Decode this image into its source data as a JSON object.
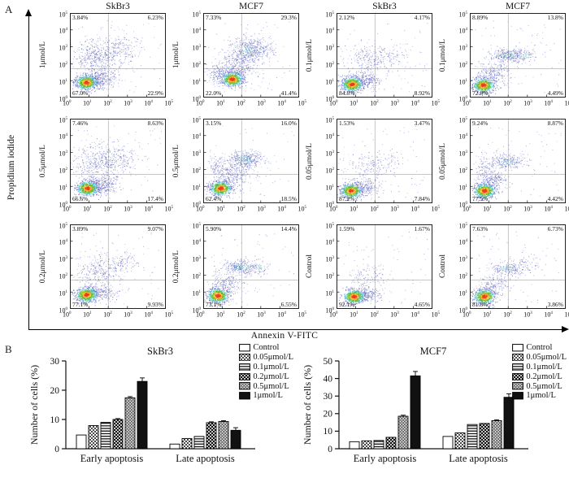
{
  "figure": {
    "panel_a_label": "A",
    "panel_b_label": "B",
    "y_axis_label": "Propidium iodide",
    "x_axis_label": "Annexin V-FITC",
    "column_titles": [
      "SkBr3",
      "MCF7",
      "SkBr3",
      "MCF7"
    ],
    "y_ticks": [
      "10^5",
      "10^4",
      "10^3",
      "10^2",
      "10^1",
      "10^0"
    ],
    "x_ticks": [
      "10^0",
      "10^1",
      "10^2",
      "10^3",
      "10^4",
      "10^5"
    ]
  },
  "chart_data": {
    "flow_cytometry": {
      "type": "scatter",
      "x_axis": "Annexin V-FITC",
      "y_axis": "Propidium iodide",
      "axis_log10_range": [
        0,
        5
      ],
      "plots": [
        {
          "cell_line": "SkBr3",
          "treatment": "1μmol/L",
          "quadrants": {
            "ul": "3.84%",
            "ur": "6.23%",
            "ll": "67.0%",
            "lr": "22.9%"
          },
          "render": {
            "hot": [
              0.17,
              0.82
            ],
            "clusters": [
              [
                0.31,
                0.78,
                0.09,
                0.05,
                320,
                0
              ],
              [
                0.3,
                0.52,
                0.13,
                0.11,
                500,
                0
              ],
              [
                0.55,
                0.42,
                0.1,
                0.08,
                140,
                0
              ]
            ]
          }
        },
        {
          "cell_line": "MCF7",
          "treatment": "1μmol/L",
          "quadrants": {
            "ul": "7.33%",
            "ur": "29.3%",
            "ll": "22.0%",
            "lr": "41.4%"
          },
          "render": {
            "hot": [
              0.3,
              0.78
            ],
            "clusters": [
              [
                0.46,
                0.44,
                0.1,
                0.07,
                420,
                1
              ],
              [
                0.34,
                0.62,
                0.11,
                0.09,
                330,
                0
              ],
              [
                0.15,
                0.72,
                0.06,
                0.06,
                140,
                0
              ],
              [
                0.62,
                0.4,
                0.07,
                0.05,
                90,
                1
              ]
            ]
          }
        },
        {
          "cell_line": "SkBr3",
          "treatment": "0.1μmol/L",
          "quadrants": {
            "ul": "2.12%",
            "ur": "4.17%",
            "ll": "84.8%",
            "lr": "8.92%"
          },
          "render": {
            "hot": [
              0.16,
              0.84
            ],
            "clusters": [
              [
                0.3,
                0.8,
                0.08,
                0.05,
                240,
                0
              ],
              [
                0.33,
                0.56,
                0.12,
                0.1,
                260,
                0
              ],
              [
                0.58,
                0.5,
                0.1,
                0.07,
                70,
                0
              ]
            ]
          }
        },
        {
          "cell_line": "MCF7",
          "treatment": "0.1μmol/L",
          "quadrants": {
            "ul": "8.89%",
            "ur": "13.8%",
            "ll": "72.8%",
            "lr": "4.49%"
          },
          "render": {
            "hot": [
              0.14,
              0.85
            ],
            "clusters": [
              [
                0.4,
                0.5,
                0.1,
                0.04,
                320,
                1
              ],
              [
                0.24,
                0.7,
                0.08,
                0.07,
                240,
                0
              ],
              [
                0.56,
                0.5,
                0.08,
                0.04,
                90,
                1
              ]
            ]
          }
        },
        {
          "cell_line": "SkBr3",
          "treatment": "0.5μmol/L",
          "quadrants": {
            "ul": "7.46%",
            "ur": "8.63%",
            "ll": "66.6%",
            "lr": "17.4%"
          },
          "render": {
            "hot": [
              0.18,
              0.82
            ],
            "clusters": [
              [
                0.33,
                0.78,
                0.09,
                0.05,
                300,
                0
              ],
              [
                0.3,
                0.52,
                0.13,
                0.11,
                420,
                0
              ],
              [
                0.55,
                0.46,
                0.1,
                0.08,
                130,
                0
              ]
            ]
          }
        },
        {
          "cell_line": "MCF7",
          "treatment": "0.5μmol/L",
          "quadrants": {
            "ul": "3.15%",
            "ur": "16.0%",
            "ll": "62.4%",
            "lr": "18.5%"
          },
          "render": {
            "hot": [
              0.18,
              0.82
            ],
            "clusters": [
              [
                0.43,
                0.48,
                0.09,
                0.05,
                380,
                1
              ],
              [
                0.3,
                0.66,
                0.1,
                0.08,
                300,
                0
              ],
              [
                0.14,
                0.56,
                0.05,
                0.08,
                90,
                0
              ]
            ]
          }
        },
        {
          "cell_line": "SkBr3",
          "treatment": "0.05μmol/L",
          "quadrants": {
            "ul": "1.53%",
            "ur": "3.47%",
            "ll": "87.2%",
            "lr": "7.84%"
          },
          "render": {
            "hot": [
              0.15,
              0.85
            ],
            "clusters": [
              [
                0.29,
                0.82,
                0.08,
                0.05,
                200,
                0
              ],
              [
                0.34,
                0.6,
                0.12,
                0.1,
                170,
                0
              ],
              [
                0.55,
                0.5,
                0.1,
                0.08,
                50,
                0
              ]
            ]
          }
        },
        {
          "cell_line": "MCF7",
          "treatment": "0.05μmol/L",
          "quadrants": {
            "ul": "9.24%",
            "ur": "8.87%",
            "ll": "77.5%",
            "lr": "4.42%"
          },
          "render": {
            "hot": [
              0.15,
              0.85
            ],
            "clusters": [
              [
                0.38,
                0.5,
                0.1,
                0.05,
                260,
                1
              ],
              [
                0.24,
                0.71,
                0.08,
                0.06,
                220,
                0
              ],
              [
                0.14,
                0.56,
                0.05,
                0.07,
                80,
                0
              ]
            ]
          }
        },
        {
          "cell_line": "SkBr3",
          "treatment": "0.2μmol/L",
          "quadrants": {
            "ul": "3.89%",
            "ur": "9.07%",
            "ll": "77.1%",
            "lr": "9.93%"
          },
          "render": {
            "hot": [
              0.17,
              0.83
            ],
            "clusters": [
              [
                0.31,
                0.8,
                0.09,
                0.05,
                240,
                0
              ],
              [
                0.32,
                0.55,
                0.12,
                0.1,
                300,
                0
              ],
              [
                0.57,
                0.44,
                0.08,
                0.06,
                90,
                0
              ]
            ]
          }
        },
        {
          "cell_line": "MCF7",
          "treatment": "0.2μmol/L",
          "quadrants": {
            "ul": "5.90%",
            "ur": "14.4%",
            "ll": "73.1%",
            "lr": "6.55%"
          },
          "render": {
            "hot": [
              0.15,
              0.84
            ],
            "clusters": [
              [
                0.4,
                0.5,
                0.09,
                0.04,
                300,
                1
              ],
              [
                0.24,
                0.7,
                0.08,
                0.07,
                210,
                0
              ],
              [
                0.55,
                0.52,
                0.07,
                0.05,
                70,
                1
              ]
            ]
          }
        },
        {
          "cell_line": "SkBr3",
          "treatment": "Control",
          "quadrants": {
            "ul": "1.59%",
            "ur": "1.67%",
            "ll": "92.1%",
            "lr": "4.65%"
          },
          "render": {
            "hot": [
              0.18,
              0.85
            ],
            "clusters": [
              [
                0.31,
                0.83,
                0.08,
                0.04,
                200,
                0
              ],
              [
                0.34,
                0.62,
                0.1,
                0.08,
                130,
                0
              ]
            ]
          }
        },
        {
          "cell_line": "MCF7",
          "treatment": "Control",
          "quadrants": {
            "ul": "7.63%",
            "ur": "6.73%",
            "ll": "81.8%",
            "lr": "3.86%"
          },
          "render": {
            "hot": [
              0.15,
              0.85
            ],
            "clusters": [
              [
                0.4,
                0.52,
                0.1,
                0.04,
                220,
                1
              ],
              [
                0.24,
                0.72,
                0.07,
                0.06,
                180,
                0
              ],
              [
                0.6,
                0.45,
                0.08,
                0.05,
                50,
                0
              ]
            ]
          }
        }
      ]
    },
    "bar_charts": [
      {
        "type": "bar",
        "title": "SkBr3",
        "ylabel": "Number of cells (%)",
        "ylim": [
          0,
          30
        ],
        "yticks": [
          0,
          10,
          20,
          30
        ],
        "categories": [
          "Early apoptosis",
          "Late apoptosis"
        ],
        "series": [
          {
            "name": "Control",
            "values": [
              4.7,
              1.6
            ],
            "errors": [
              0.2,
              0.1
            ]
          },
          {
            "name": "0.05μmol/L",
            "values": [
              7.9,
              3.5
            ],
            "errors": [
              0.2,
              0.2
            ]
          },
          {
            "name": "0.1μmol/L",
            "values": [
              9.0,
              4.2
            ],
            "errors": [
              0.2,
              0.2
            ]
          },
          {
            "name": "0.2μmol/L",
            "values": [
              10.0,
              8.9
            ],
            "errors": [
              0.3,
              0.3
            ]
          },
          {
            "name": "0.5μmol/L",
            "values": [
              17.4,
              9.3
            ],
            "errors": [
              0.4,
              0.3
            ]
          },
          {
            "name": "1μmol/L",
            "values": [
              23.0,
              6.3
            ],
            "errors": [
              1.2,
              0.9
            ]
          }
        ]
      },
      {
        "type": "bar",
        "title": "MCF7",
        "ylabel": "Number of cells (%)",
        "ylim": [
          0,
          50
        ],
        "yticks": [
          0,
          10,
          20,
          30,
          40,
          50
        ],
        "categories": [
          "Early apoptosis",
          "Late apoptosis"
        ],
        "series": [
          {
            "name": "Control",
            "values": [
              4.0,
              7.0
            ],
            "errors": [
              0.2,
              0.3
            ]
          },
          {
            "name": "0.05μmol/L",
            "values": [
              4.5,
              9.0
            ],
            "errors": [
              0.2,
              0.4
            ]
          },
          {
            "name": "0.1μmol/L",
            "values": [
              4.7,
              13.8
            ],
            "errors": [
              0.2,
              0.4
            ]
          },
          {
            "name": "0.2μmol/L",
            "values": [
              6.5,
              14.4
            ],
            "errors": [
              0.3,
              0.4
            ]
          },
          {
            "name": "0.5μmol/L",
            "values": [
              18.5,
              16.0
            ],
            "errors": [
              0.6,
              0.5
            ]
          },
          {
            "name": "1μmol/L",
            "values": [
              41.5,
              29.3
            ],
            "errors": [
              2.5,
              2.0
            ]
          }
        ]
      }
    ],
    "colors": {
      "density_core": [
        "#e5341c",
        "#ffd23f",
        "#79c314",
        "#35b6c9",
        "#5560c0"
      ],
      "scatter_blue": "#5058b8",
      "bar_solid": "#111111"
    }
  }
}
